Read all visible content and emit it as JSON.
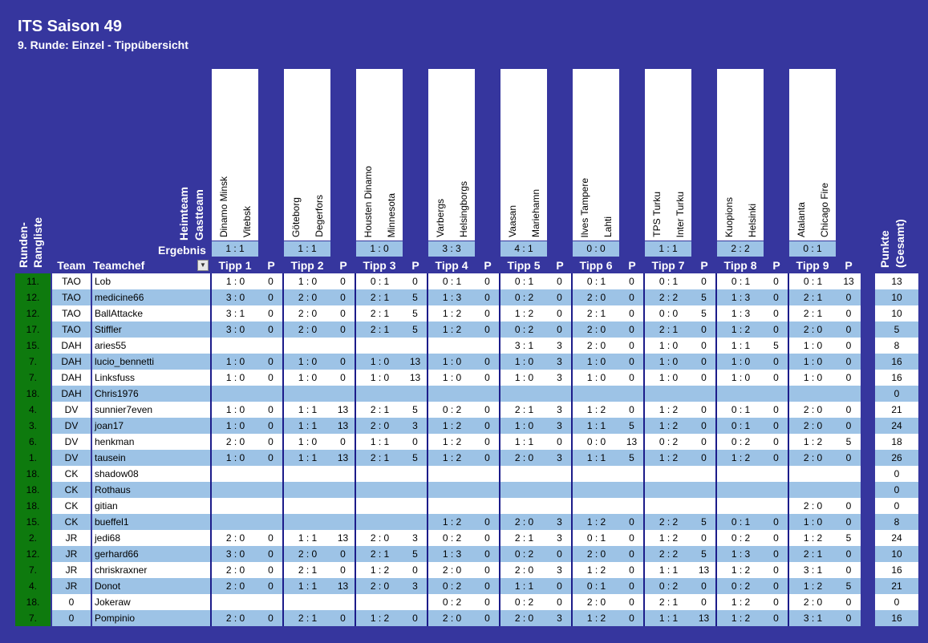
{
  "title": "ITS Saison 49",
  "subtitle": "9. Runde: Einzel - Tippübersicht",
  "labels": {
    "heimteam": "Heimteam",
    "gastteam": "Gastteam",
    "ergebnis": "Ergebnis",
    "runden": "Runden-",
    "rangliste": "Rangliste",
    "team": "Team",
    "teamchef": "Teamchef",
    "p": "P",
    "punkte": "Punkte",
    "gesamt": "(Gesamt)"
  },
  "games": [
    {
      "home": "Dinamo Minsk",
      "away": "Vitebsk",
      "result": "1 : 1",
      "tipp": "Tipp 1"
    },
    {
      "home": "Göteborg",
      "away": "Degerfors",
      "result": "1 : 1",
      "tipp": "Tipp 2"
    },
    {
      "home": "Housten Dinamo",
      "away": "Minnesota",
      "result": "1 : 0",
      "tipp": "Tipp 3"
    },
    {
      "home": "Varbergs",
      "away": "Helsingborgs",
      "result": "3 : 3",
      "tipp": "Tipp 4"
    },
    {
      "home": "Vaasan",
      "away": "Mariehamn",
      "result": "4 : 1",
      "tipp": "Tipp 5"
    },
    {
      "home": "Ilves Tampere",
      "away": "Lahti",
      "result": "0 : 0",
      "tipp": "Tipp 6"
    },
    {
      "home": "TPS Turku",
      "away": "Inter Turku",
      "result": "1 : 1",
      "tipp": "Tipp 7"
    },
    {
      "home": "Kuopions",
      "away": "Helsinki",
      "result": "2 : 2",
      "tipp": "Tipp 8"
    },
    {
      "home": "Atalanta",
      "away": "Chicago Fire",
      "result": "0 : 1",
      "tipp": "Tipp 9"
    }
  ],
  "rows": [
    {
      "rank": "11.",
      "team": "TAO",
      "chef": "Lob",
      "tipps": [
        [
          "1 : 0",
          "0"
        ],
        [
          "1 : 0",
          "0"
        ],
        [
          "0 : 1",
          "0"
        ],
        [
          "0 : 1",
          "0"
        ],
        [
          "0 : 1",
          "0"
        ],
        [
          "0 : 1",
          "0"
        ],
        [
          "0 : 1",
          "0"
        ],
        [
          "0 : 1",
          "0"
        ],
        [
          "0 : 1",
          "13"
        ]
      ],
      "total": "13"
    },
    {
      "rank": "12.",
      "team": "TAO",
      "chef": "medicine66",
      "tipps": [
        [
          "3 : 0",
          "0"
        ],
        [
          "2 : 0",
          "0"
        ],
        [
          "2 : 1",
          "5"
        ],
        [
          "1 : 3",
          "0"
        ],
        [
          "0 : 2",
          "0"
        ],
        [
          "2 : 0",
          "0"
        ],
        [
          "2 : 2",
          "5"
        ],
        [
          "1 : 3",
          "0"
        ],
        [
          "2 : 1",
          "0"
        ]
      ],
      "total": "10"
    },
    {
      "rank": "12.",
      "team": "TAO",
      "chef": "BallAttacke",
      "tipps": [
        [
          "3 : 1",
          "0"
        ],
        [
          "2 : 0",
          "0"
        ],
        [
          "2 : 1",
          "5"
        ],
        [
          "1 : 2",
          "0"
        ],
        [
          "1 : 2",
          "0"
        ],
        [
          "2 : 1",
          "0"
        ],
        [
          "0 : 0",
          "5"
        ],
        [
          "1 : 3",
          "0"
        ],
        [
          "2 : 1",
          "0"
        ]
      ],
      "total": "10"
    },
    {
      "rank": "17.",
      "team": "TAO",
      "chef": "Stiffler",
      "tipps": [
        [
          "3 : 0",
          "0"
        ],
        [
          "2 : 0",
          "0"
        ],
        [
          "2 : 1",
          "5"
        ],
        [
          "1 : 2",
          "0"
        ],
        [
          "0 : 2",
          "0"
        ],
        [
          "2 : 0",
          "0"
        ],
        [
          "2 : 1",
          "0"
        ],
        [
          "1 : 2",
          "0"
        ],
        [
          "2 : 0",
          "0"
        ]
      ],
      "total": "5"
    },
    {
      "rank": "15.",
      "team": "DAH",
      "chef": "aries55",
      "tipps": [
        [
          "",
          ""
        ],
        [
          "",
          ""
        ],
        [
          "",
          ""
        ],
        [
          "",
          ""
        ],
        [
          "3 : 1",
          "3"
        ],
        [
          "2 : 0",
          "0"
        ],
        [
          "1 : 0",
          "0"
        ],
        [
          "1 : 1",
          "5"
        ],
        [
          "1 : 0",
          "0"
        ]
      ],
      "total": "8"
    },
    {
      "rank": "7.",
      "team": "DAH",
      "chef": "lucio_bennetti",
      "tipps": [
        [
          "1 : 0",
          "0"
        ],
        [
          "1 : 0",
          "0"
        ],
        [
          "1 : 0",
          "13"
        ],
        [
          "1 : 0",
          "0"
        ],
        [
          "1 : 0",
          "3"
        ],
        [
          "1 : 0",
          "0"
        ],
        [
          "1 : 0",
          "0"
        ],
        [
          "1 : 0",
          "0"
        ],
        [
          "1 : 0",
          "0"
        ]
      ],
      "total": "16"
    },
    {
      "rank": "7.",
      "team": "DAH",
      "chef": "Linksfuss",
      "tipps": [
        [
          "1 : 0",
          "0"
        ],
        [
          "1 : 0",
          "0"
        ],
        [
          "1 : 0",
          "13"
        ],
        [
          "1 : 0",
          "0"
        ],
        [
          "1 : 0",
          "3"
        ],
        [
          "1 : 0",
          "0"
        ],
        [
          "1 : 0",
          "0"
        ],
        [
          "1 : 0",
          "0"
        ],
        [
          "1 : 0",
          "0"
        ]
      ],
      "total": "16"
    },
    {
      "rank": "18.",
      "team": "DAH",
      "chef": "Chris1976",
      "tipps": [
        [
          "",
          ""
        ],
        [
          "",
          ""
        ],
        [
          "",
          ""
        ],
        [
          "",
          ""
        ],
        [
          "",
          ""
        ],
        [
          "",
          ""
        ],
        [
          "",
          ""
        ],
        [
          "",
          ""
        ],
        [
          "",
          ""
        ]
      ],
      "total": "0"
    },
    {
      "rank": "4.",
      "team": "DV",
      "chef": "sunnier7even",
      "tipps": [
        [
          "1 : 0",
          "0"
        ],
        [
          "1 : 1",
          "13"
        ],
        [
          "2 : 1",
          "5"
        ],
        [
          "0 : 2",
          "0"
        ],
        [
          "2 : 1",
          "3"
        ],
        [
          "1 : 2",
          "0"
        ],
        [
          "1 : 2",
          "0"
        ],
        [
          "0 : 1",
          "0"
        ],
        [
          "2 : 0",
          "0"
        ]
      ],
      "total": "21"
    },
    {
      "rank": "3.",
      "team": "DV",
      "chef": "joan17",
      "tipps": [
        [
          "1 : 0",
          "0"
        ],
        [
          "1 : 1",
          "13"
        ],
        [
          "2 : 0",
          "3"
        ],
        [
          "1 : 2",
          "0"
        ],
        [
          "1 : 0",
          "3"
        ],
        [
          "1 : 1",
          "5"
        ],
        [
          "1 : 2",
          "0"
        ],
        [
          "0 : 1",
          "0"
        ],
        [
          "2 : 0",
          "0"
        ]
      ],
      "total": "24"
    },
    {
      "rank": "6.",
      "team": "DV",
      "chef": "henkman",
      "tipps": [
        [
          "2 : 0",
          "0"
        ],
        [
          "1 : 0",
          "0"
        ],
        [
          "1 : 1",
          "0"
        ],
        [
          "1 : 2",
          "0"
        ],
        [
          "1 : 1",
          "0"
        ],
        [
          "0 : 0",
          "13"
        ],
        [
          "0 : 2",
          "0"
        ],
        [
          "0 : 2",
          "0"
        ],
        [
          "1 : 2",
          "5"
        ]
      ],
      "total": "18"
    },
    {
      "rank": "1.",
      "team": "DV",
      "chef": "tausein",
      "tipps": [
        [
          "1 : 0",
          "0"
        ],
        [
          "1 : 1",
          "13"
        ],
        [
          "2 : 1",
          "5"
        ],
        [
          "1 : 2",
          "0"
        ],
        [
          "2 : 0",
          "3"
        ],
        [
          "1 : 1",
          "5"
        ],
        [
          "1 : 2",
          "0"
        ],
        [
          "1 : 2",
          "0"
        ],
        [
          "2 : 0",
          "0"
        ]
      ],
      "total": "26"
    },
    {
      "rank": "18.",
      "team": "CK",
      "chef": "shadow08",
      "tipps": [
        [
          "",
          ""
        ],
        [
          "",
          ""
        ],
        [
          "",
          ""
        ],
        [
          "",
          ""
        ],
        [
          "",
          ""
        ],
        [
          "",
          ""
        ],
        [
          "",
          ""
        ],
        [
          "",
          ""
        ],
        [
          "",
          ""
        ]
      ],
      "total": "0"
    },
    {
      "rank": "18.",
      "team": "CK",
      "chef": "Rothaus",
      "tipps": [
        [
          "",
          ""
        ],
        [
          "",
          ""
        ],
        [
          "",
          ""
        ],
        [
          "",
          ""
        ],
        [
          "",
          ""
        ],
        [
          "",
          ""
        ],
        [
          "",
          ""
        ],
        [
          "",
          ""
        ],
        [
          "",
          ""
        ]
      ],
      "total": "0"
    },
    {
      "rank": "18.",
      "team": "CK",
      "chef": "gitian",
      "tipps": [
        [
          "",
          ""
        ],
        [
          "",
          ""
        ],
        [
          "",
          ""
        ],
        [
          "",
          ""
        ],
        [
          "",
          ""
        ],
        [
          "",
          ""
        ],
        [
          "",
          ""
        ],
        [
          "",
          ""
        ],
        [
          "2 : 0",
          "0"
        ]
      ],
      "total": "0"
    },
    {
      "rank": "15.",
      "team": "CK",
      "chef": "bueffel1",
      "tipps": [
        [
          "",
          ""
        ],
        [
          "",
          ""
        ],
        [
          "",
          ""
        ],
        [
          "1 : 2",
          "0"
        ],
        [
          "2 : 0",
          "3"
        ],
        [
          "1 : 2",
          "0"
        ],
        [
          "2 : 2",
          "5"
        ],
        [
          "0 : 1",
          "0"
        ],
        [
          "1 : 0",
          "0"
        ]
      ],
      "total": "8"
    },
    {
      "rank": "2.",
      "team": "JR",
      "chef": "jedi68",
      "tipps": [
        [
          "2 : 0",
          "0"
        ],
        [
          "1 : 1",
          "13"
        ],
        [
          "2 : 0",
          "3"
        ],
        [
          "0 : 2",
          "0"
        ],
        [
          "2 : 1",
          "3"
        ],
        [
          "0 : 1",
          "0"
        ],
        [
          "1 : 2",
          "0"
        ],
        [
          "0 : 2",
          "0"
        ],
        [
          "1 : 2",
          "5"
        ]
      ],
      "total": "24"
    },
    {
      "rank": "12.",
      "team": "JR",
      "chef": "gerhard66",
      "tipps": [
        [
          "3 : 0",
          "0"
        ],
        [
          "2 : 0",
          "0"
        ],
        [
          "2 : 1",
          "5"
        ],
        [
          "1 : 3",
          "0"
        ],
        [
          "0 : 2",
          "0"
        ],
        [
          "2 : 0",
          "0"
        ],
        [
          "2 : 2",
          "5"
        ],
        [
          "1 : 3",
          "0"
        ],
        [
          "2 : 1",
          "0"
        ]
      ],
      "total": "10"
    },
    {
      "rank": "7.",
      "team": "JR",
      "chef": "chriskraxner",
      "tipps": [
        [
          "2 : 0",
          "0"
        ],
        [
          "2 : 1",
          "0"
        ],
        [
          "1 : 2",
          "0"
        ],
        [
          "2 : 0",
          "0"
        ],
        [
          "2 : 0",
          "3"
        ],
        [
          "1 : 2",
          "0"
        ],
        [
          "1 : 1",
          "13"
        ],
        [
          "1 : 2",
          "0"
        ],
        [
          "3 : 1",
          "0"
        ]
      ],
      "total": "16"
    },
    {
      "rank": "4.",
      "team": "JR",
      "chef": "Donot",
      "tipps": [
        [
          "2 : 0",
          "0"
        ],
        [
          "1 : 1",
          "13"
        ],
        [
          "2 : 0",
          "3"
        ],
        [
          "0 : 2",
          "0"
        ],
        [
          "1 : 1",
          "0"
        ],
        [
          "0 : 1",
          "0"
        ],
        [
          "0 : 2",
          "0"
        ],
        [
          "0 : 2",
          "0"
        ],
        [
          "1 : 2",
          "5"
        ]
      ],
      "total": "21"
    },
    {
      "rank": "18.",
      "team": "0",
      "chef": "Jokeraw",
      "tipps": [
        [
          "",
          ""
        ],
        [
          "",
          ""
        ],
        [
          "",
          ""
        ],
        [
          "0 : 2",
          "0"
        ],
        [
          "0 : 2",
          "0"
        ],
        [
          "2 : 0",
          "0"
        ],
        [
          "2 : 1",
          "0"
        ],
        [
          "1 : 2",
          "0"
        ],
        [
          "2 : 0",
          "0"
        ]
      ],
      "total": "0"
    },
    {
      "rank": "7.",
      "team": "0",
      "chef": "Pompinio",
      "tipps": [
        [
          "2 : 0",
          "0"
        ],
        [
          "2 : 1",
          "0"
        ],
        [
          "1 : 2",
          "0"
        ],
        [
          "2 : 0",
          "0"
        ],
        [
          "2 : 0",
          "3"
        ],
        [
          "1 : 2",
          "0"
        ],
        [
          "1 : 1",
          "13"
        ],
        [
          "1 : 2",
          "0"
        ],
        [
          "3 : 1",
          "0"
        ]
      ],
      "total": "16"
    }
  ]
}
